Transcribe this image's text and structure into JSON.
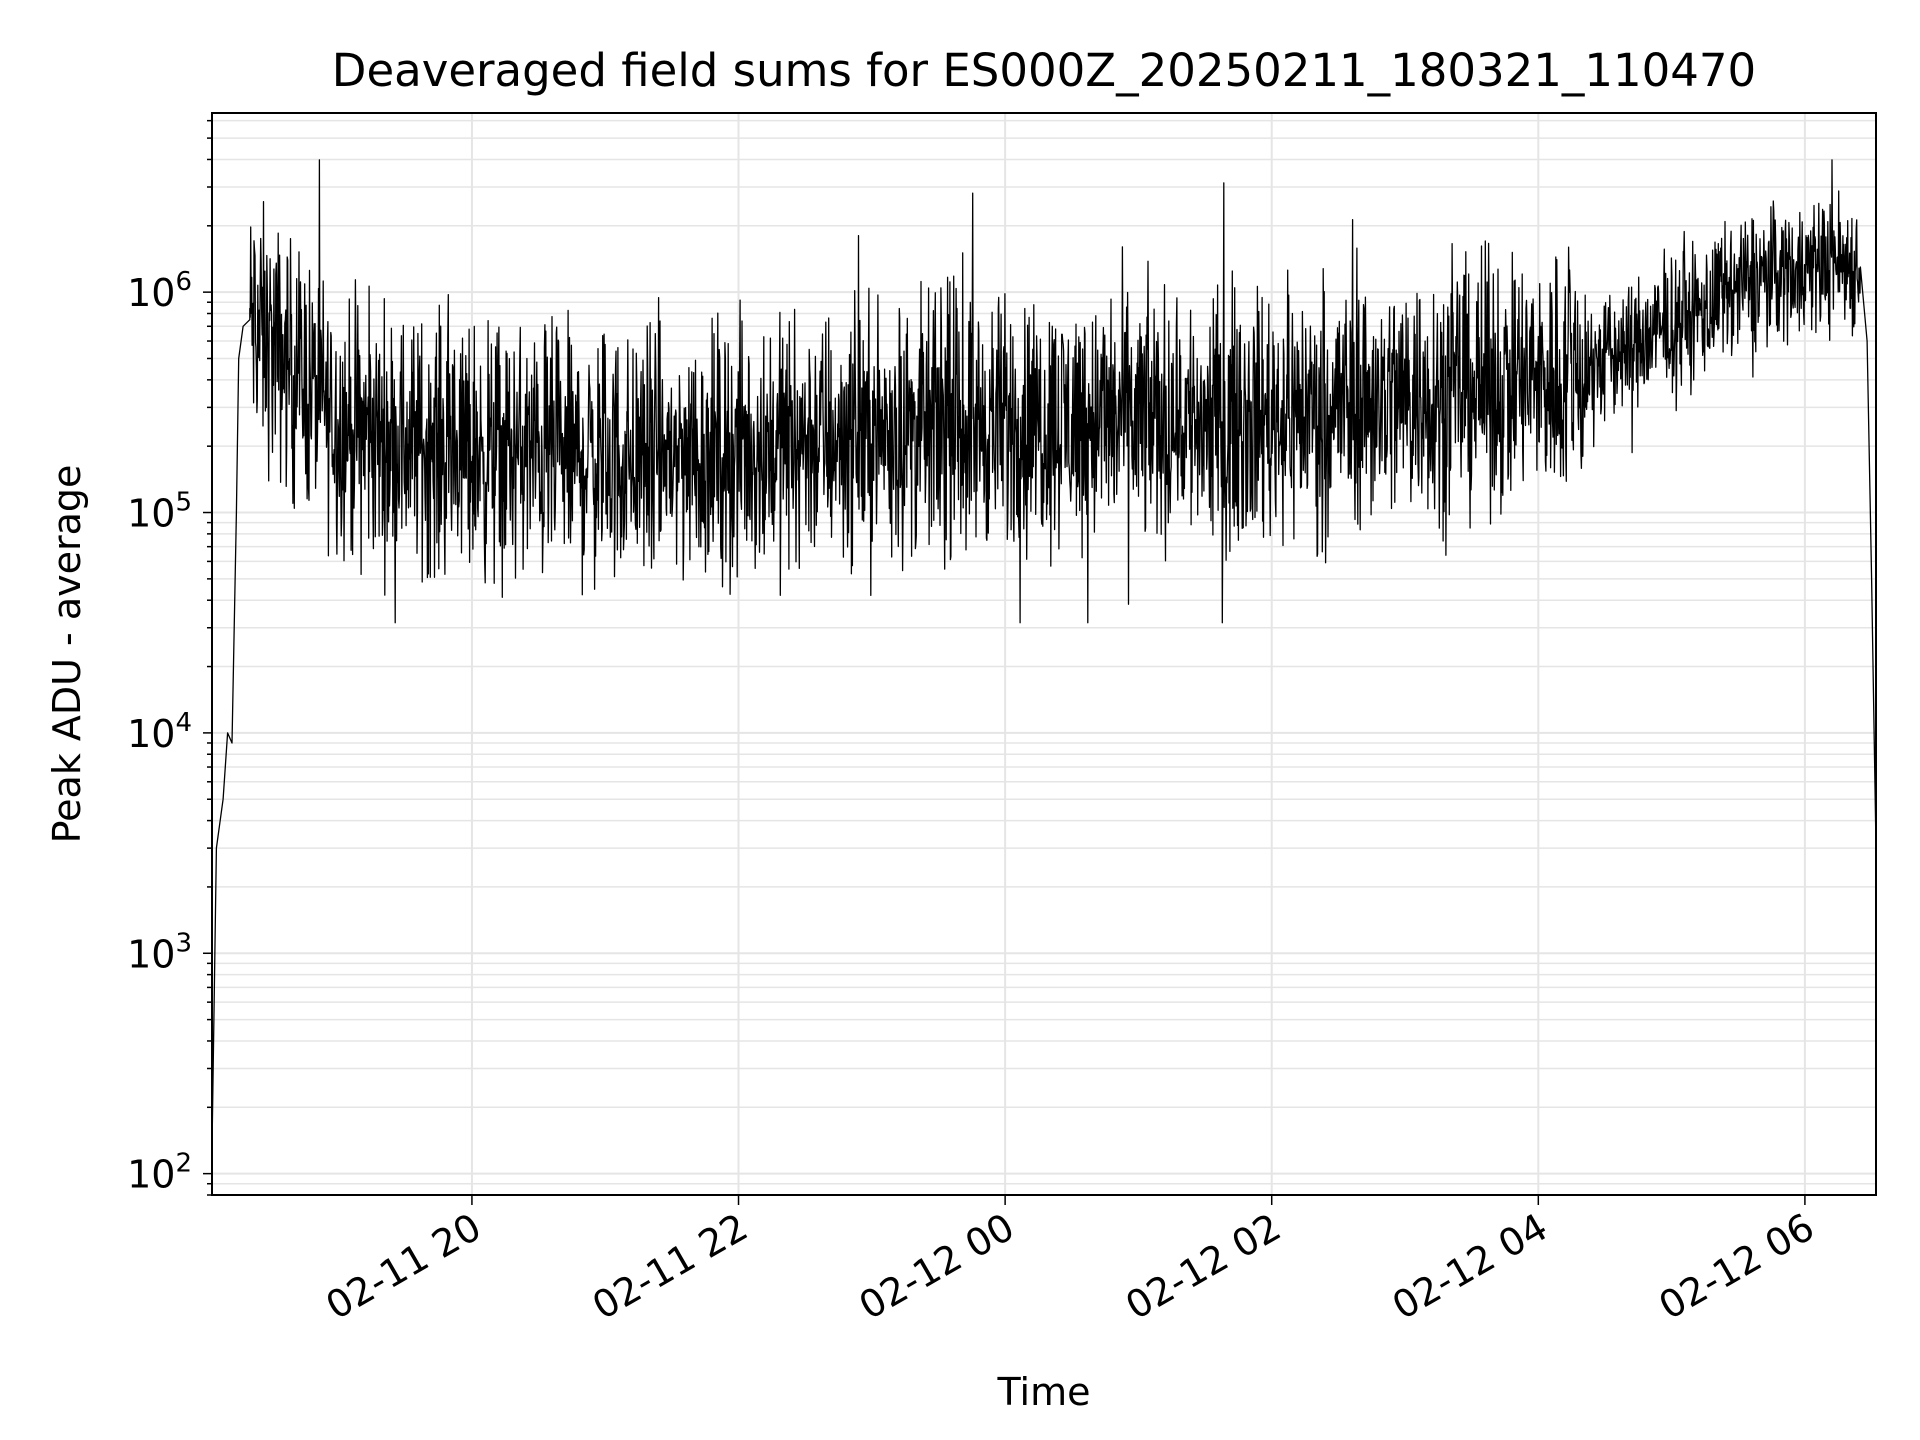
{
  "chart_data": {
    "type": "line",
    "title": "Deaveraged field sums for ES000Z_20250211_180321_110470",
    "xlabel": "Time",
    "ylabel": "Peak ADU - average",
    "yscale": "log",
    "ylim": [
      80,
      6500000
    ],
    "xlim": [
      "2025-02-11 18:03",
      "2025-02-12 06:32"
    ],
    "grid": true,
    "line_color": "#000000",
    "grid_color": "#e5e5e5",
    "x_ticks": [
      {
        "value": "2025-02-11 20:00",
        "label": "02-11 20"
      },
      {
        "value": "2025-02-11 22:00",
        "label": "02-11 22"
      },
      {
        "value": "2025-02-12 00:00",
        "label": "02-12 00"
      },
      {
        "value": "2025-02-12 02:00",
        "label": "02-12 02"
      },
      {
        "value": "2025-02-12 04:00",
        "label": "02-12 04"
      },
      {
        "value": "2025-02-12 06:00",
        "label": "02-12 06"
      }
    ],
    "y_ticks": [
      {
        "value": 100,
        "base": "10",
        "exp": "2"
      },
      {
        "value": 1000,
        "base": "10",
        "exp": "3"
      },
      {
        "value": 10000,
        "base": "10",
        "exp": "4"
      },
      {
        "value": 100000,
        "base": "10",
        "exp": "5"
      },
      {
        "value": 1000000,
        "base": "10",
        "exp": "6"
      }
    ],
    "series": [
      {
        "x": [
          "2025-02-11 18:03",
          "2025-02-11 18:05",
          "2025-02-11 18:08",
          "2025-02-11 18:10",
          "2025-02-11 18:12",
          "2025-02-11 18:14",
          "2025-02-11 18:15",
          "2025-02-11 18:17",
          "2025-02-11 18:20",
          "2025-02-11 18:25",
          "2025-02-11 18:30",
          "2025-02-11 18:40",
          "2025-02-11 18:50",
          "2025-02-11 19:00",
          "2025-02-11 19:15",
          "2025-02-11 19:30",
          "2025-02-11 19:45",
          "2025-02-11 20:00",
          "2025-02-11 20:20",
          "2025-02-11 20:40",
          "2025-02-11 21:00",
          "2025-02-11 21:20",
          "2025-02-11 21:40",
          "2025-02-11 22:00",
          "2025-02-11 22:20",
          "2025-02-11 22:40",
          "2025-02-11 23:00",
          "2025-02-11 23:20",
          "2025-02-11 23:40",
          "2025-02-12 00:00",
          "2025-02-12 00:20",
          "2025-02-12 00:40",
          "2025-02-12 01:00",
          "2025-02-12 01:20",
          "2025-02-12 01:40",
          "2025-02-12 02:00",
          "2025-02-12 02:20",
          "2025-02-12 02:40",
          "2025-02-12 03:00",
          "2025-02-12 03:20",
          "2025-02-12 03:40",
          "2025-02-12 04:00",
          "2025-02-12 04:20",
          "2025-02-12 04:40",
          "2025-02-12 05:00",
          "2025-02-12 05:20",
          "2025-02-12 05:40",
          "2025-02-12 06:00",
          "2025-02-12 06:15",
          "2025-02-12 06:25",
          "2025-02-12 06:28",
          "2025-02-12 06:30",
          "2025-02-12 06:32"
        ],
        "values": [
          130,
          3000,
          5000,
          10000,
          9000,
          100000,
          500000,
          700000,
          750000,
          650000,
          550000,
          450000,
          350000,
          250000,
          220000,
          210000,
          200000,
          190000,
          185000,
          180000,
          175000,
          180000,
          185000,
          190000,
          210000,
          220000,
          230000,
          240000,
          250000,
          255000,
          260000,
          270000,
          265000,
          270000,
          260000,
          280000,
          300000,
          320000,
          340000,
          360000,
          380000,
          400000,
          450000,
          550000,
          700000,
          900000,
          1200000,
          1300000,
          1400000,
          1300000,
          600000,
          50000,
          3000
        ]
      }
    ]
  }
}
